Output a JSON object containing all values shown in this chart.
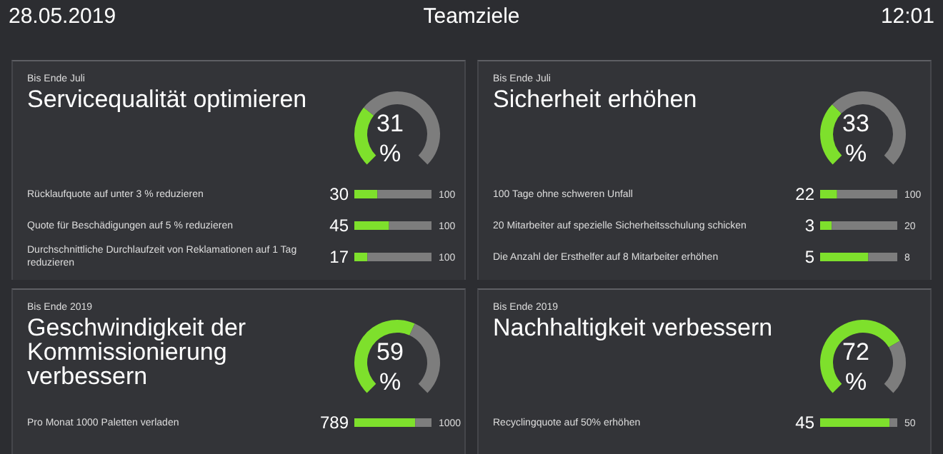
{
  "chart_data": [
    {
      "type": "other",
      "title": "Teamziele",
      "annotations": [
        "28.05.2019",
        "12:01"
      ]
    },
    {
      "type": "donut",
      "title": "Servicequalität optimieren",
      "categories": [
        null,
        null
      ],
      "values": [
        31,
        69
      ],
      "colors": [
        "#7ee02c",
        "#7d7d7d"
      ],
      "annotations": [
        "Bis Ende Juli",
        "31",
        "%"
      ]
    },
    {
      "type": "bar",
      "orientation": "horizontal",
      "stacked": true,
      "categories": [
        "Rücklaufquote auf unter 3 % reduzieren",
        "Quote für Beschädigungen auf 5 % reduzieren",
        "Durchschnittliche Durchlaufzeit von Reklamationen auf 1 Tag reduzieren"
      ],
      "series": [
        {
          "color": "#7ee02c",
          "values": [
            30,
            45,
            17
          ],
          "value_labels": [
            "30",
            "45",
            "17"
          ]
        },
        {
          "color": "#7d7d7d",
          "values": [
            70,
            55,
            83
          ]
        }
      ],
      "totals": [
        "100",
        "100",
        "100"
      ]
    },
    {
      "type": "donut",
      "title": "Sicherheit erhöhen",
      "categories": [
        null,
        null
      ],
      "values": [
        33,
        67
      ],
      "colors": [
        "#7ee02c",
        "#7d7d7d"
      ],
      "annotations": [
        "Bis Ende Juli",
        "33",
        "%"
      ]
    },
    {
      "type": "bar",
      "orientation": "horizontal",
      "stacked": true,
      "categories": [
        "100 Tage ohne schweren Unfall"
      ],
      "series": [
        {
          "color": "#7ee02c",
          "values": [
            22
          ],
          "value_labels": [
            "22"
          ]
        },
        {
          "color": "#7d7d7d",
          "values": [
            78
          ]
        }
      ],
      "totals": [
        "100"
      ]
    },
    {
      "type": "bar",
      "orientation": "horizontal",
      "stacked": true,
      "categories": [
        "20 Mitarbeiter auf spezielle Sicherheitsschulung schicken"
      ],
      "series": [
        {
          "color": "#7ee02c",
          "values": [
            3
          ],
          "value_labels": [
            "3"
          ]
        },
        {
          "color": "#7d7d7d",
          "values": [
            17
          ]
        }
      ],
      "totals": [
        "20"
      ]
    },
    {
      "type": "bar",
      "orientation": "horizontal",
      "stacked": true,
      "categories": [
        "Die Anzahl der Ersthelfer auf 8 Mitarbeiter erhöhen"
      ],
      "series": [
        {
          "color": "#7ee02c",
          "values": [
            5
          ],
          "value_labels": [
            "5"
          ]
        },
        {
          "color": "#7d7d7d",
          "values": [
            3
          ]
        }
      ],
      "totals": [
        "8"
      ]
    },
    {
      "type": "donut",
      "title": "Geschwindigkeit der Kommissionierung verbessern",
      "categories": [
        null,
        null
      ],
      "values": [
        59,
        41
      ],
      "colors": [
        "#7ee02c",
        "#7d7d7d"
      ],
      "annotations": [
        "Bis Ende 2019",
        "59",
        "%"
      ]
    },
    {
      "type": "bar",
      "orientation": "horizontal",
      "stacked": true,
      "categories": [
        "Pro Monat 1000 Paletten verladen"
      ],
      "series": [
        {
          "color": "#7ee02c",
          "values": [
            789
          ],
          "value_labels": [
            "789"
          ]
        },
        {
          "color": "#7d7d7d",
          "values": [
            211
          ]
        }
      ],
      "totals": [
        "1000"
      ]
    },
    {
      "type": "donut",
      "title": "Nachhaltigkeit verbessern",
      "categories": [
        null,
        null
      ],
      "values": [
        72,
        28
      ],
      "colors": [
        "#7ee02c",
        "#7d7d7d"
      ],
      "annotations": [
        "Bis Ende 2019",
        "72",
        "%"
      ]
    },
    {
      "type": "bar",
      "orientation": "horizontal",
      "stacked": true,
      "categories": [
        "Recyclingquote auf 50% erhöhen"
      ],
      "series": [
        {
          "color": "#7ee02c",
          "values": [
            45
          ],
          "value_labels": [
            "45"
          ]
        },
        {
          "color": "#7d7d7d",
          "values": [
            5
          ]
        }
      ],
      "totals": [
        "50"
      ]
    }
  ]
}
